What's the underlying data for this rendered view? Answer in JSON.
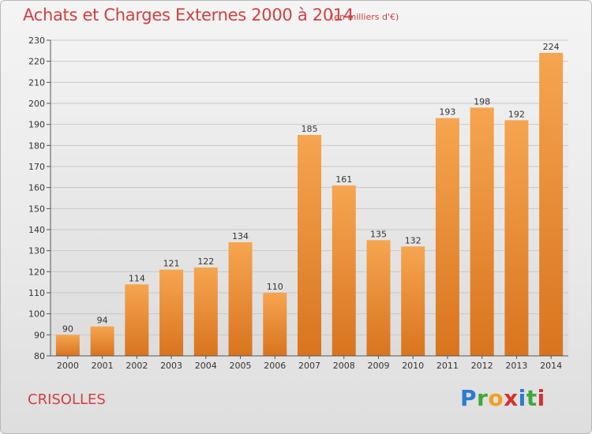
{
  "title": "Achats et Charges Externes 2000 à 2014",
  "subtitle": "(en milliers d'€)",
  "commune": "CRISOLLES",
  "logo": {
    "letters": [
      "P",
      "r",
      "o",
      "x",
      "i",
      "t",
      "i"
    ]
  },
  "colors": {
    "bar_top": "#f6a550",
    "bar_bottom": "#d9741e",
    "text_red": "#d04040"
  },
  "chart_data": {
    "type": "bar",
    "title": "Achats et Charges Externes 2000 à 2014",
    "subtitle": "(en milliers d'€)",
    "categories": [
      "2000",
      "2001",
      "2002",
      "2003",
      "2004",
      "2005",
      "2006",
      "2007",
      "2008",
      "2009",
      "2010",
      "2011",
      "2012",
      "2013",
      "2014"
    ],
    "values": [
      90,
      94,
      114,
      121,
      122,
      134,
      110,
      185,
      161,
      135,
      132,
      193,
      198,
      192,
      224
    ],
    "ylim": [
      80,
      230
    ],
    "yticks": [
      80,
      90,
      100,
      110,
      120,
      130,
      140,
      150,
      160,
      170,
      180,
      190,
      200,
      210,
      220,
      230
    ],
    "grid": true,
    "legend": "none"
  }
}
